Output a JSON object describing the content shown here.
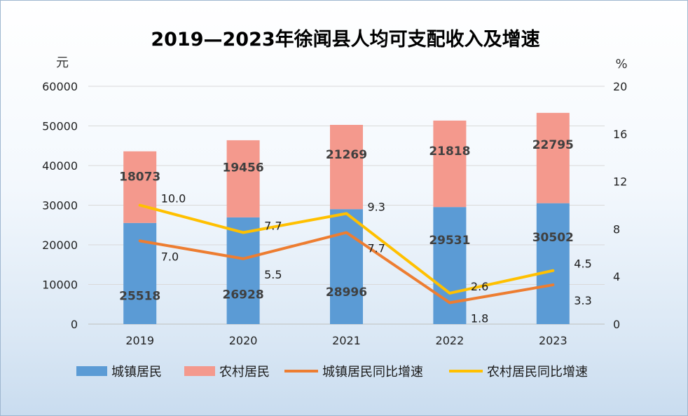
{
  "chart_data": {
    "type": "bar",
    "title": "2019—2023年徐闻县人均可支配收入及增速",
    "left_axis_unit": "元",
    "right_axis_unit": "%",
    "categories": [
      "2019",
      "2020",
      "2021",
      "2022",
      "2023"
    ],
    "ylim": [
      0,
      60000
    ],
    "yticks": [
      0,
      10000,
      20000,
      30000,
      40000,
      50000,
      60000
    ],
    "y2lim": [
      0,
      20
    ],
    "y2ticks": [
      0,
      4,
      8,
      12,
      16,
      20
    ],
    "stacked": true,
    "series": [
      {
        "name": "城镇居民",
        "kind": "bar",
        "axis": "left",
        "color": "#5b9bd5",
        "values": [
          25518,
          26928,
          28996,
          29531,
          30502
        ]
      },
      {
        "name": "农村居民",
        "kind": "bar",
        "axis": "left",
        "color": "#f4998d",
        "values": [
          18073,
          19456,
          21269,
          21818,
          22795
        ]
      },
      {
        "name": "城镇居民同比增速",
        "kind": "line",
        "axis": "right",
        "color": "#ed7d31",
        "values": [
          7.0,
          5.5,
          7.7,
          1.8,
          3.3
        ],
        "labels": [
          "7.0",
          "5.5",
          "7.7",
          "1.8",
          "3.3"
        ]
      },
      {
        "name": "农村居民同比增速",
        "kind": "line",
        "axis": "right",
        "color": "#ffc000",
        "values": [
          10.0,
          7.7,
          9.3,
          2.6,
          4.5
        ],
        "labels": [
          "10.0",
          "7.7",
          "9.3",
          "2.6",
          "4.5"
        ]
      }
    ],
    "legend_position": "bottom"
  }
}
